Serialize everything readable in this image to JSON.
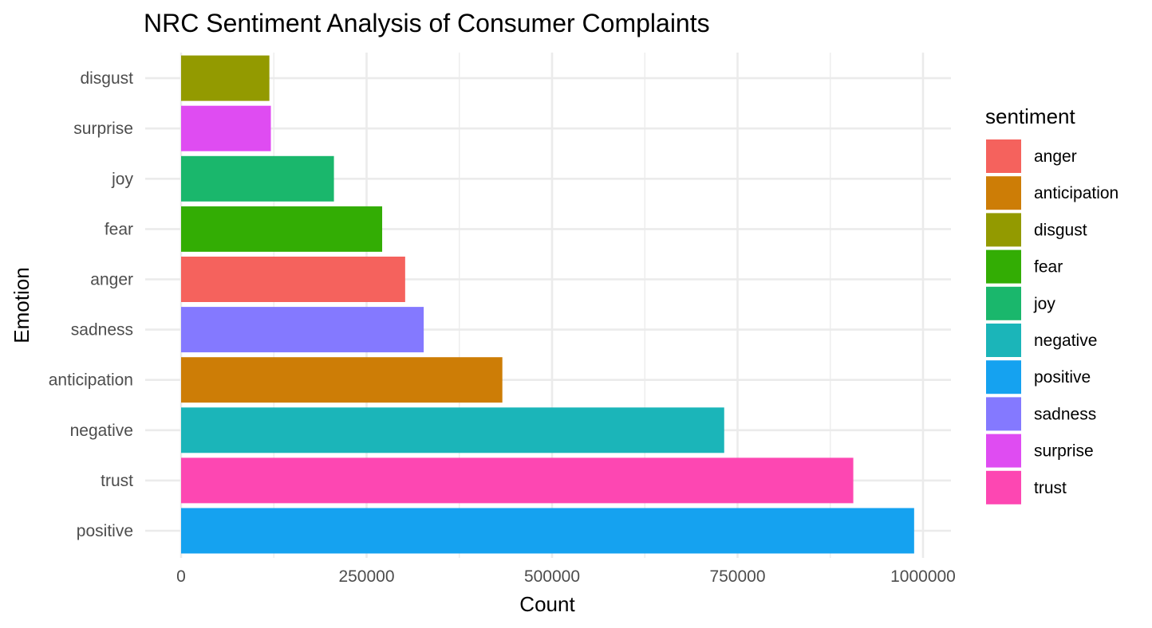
{
  "chart_data": {
    "type": "bar",
    "orientation": "horizontal",
    "title": "NRC Sentiment Analysis of Consumer Complaints",
    "xlabel": "Count",
    "ylabel": "Emotion",
    "categories": [
      "positive",
      "trust",
      "negative",
      "anticipation",
      "sadness",
      "anger",
      "fear",
      "joy",
      "surprise",
      "disgust"
    ],
    "values": [
      988000,
      906000,
      732000,
      433000,
      327000,
      302000,
      271000,
      206000,
      121000,
      119000
    ],
    "xlim": [
      0,
      1000000
    ],
    "xticks": [
      0,
      250000,
      500000,
      750000,
      1000000
    ],
    "xtick_labels": [
      "0",
      "250000",
      "500000",
      "750000",
      "1000000"
    ],
    "grid": true,
    "legend": {
      "title": "sentiment",
      "placement": "right",
      "entries": [
        {
          "label": "anger",
          "color": "#F8766D"
        },
        {
          "label": "anticipation",
          "color": "#D39200"
        },
        {
          "label": "disgust",
          "color": "#93AA00"
        },
        {
          "label": "fear",
          "color": "#00BA38"
        },
        {
          "label": "joy",
          "color": "#00C19F"
        },
        {
          "label": "negative",
          "color": "#00B9E3"
        },
        {
          "label": "positive",
          "color": "#00A5FF"
        },
        {
          "label": "sadness",
          "color": "#8B7FFF"
        },
        {
          "label": "surprise",
          "color": "#E76BF3"
        },
        {
          "label": "trust",
          "color": "#FF61C3"
        }
      ]
    },
    "colors": {
      "anger": "#F5625D",
      "anticipation": "#CD7D06",
      "disgust": "#939A00",
      "fear": "#33AD04",
      "joy": "#1AB76C",
      "negative": "#1BB5B9",
      "positive": "#15A2F0",
      "sadness": "#8479FF",
      "surprise": "#DF4CF2",
      "trust": "#FD47B2"
    }
  }
}
